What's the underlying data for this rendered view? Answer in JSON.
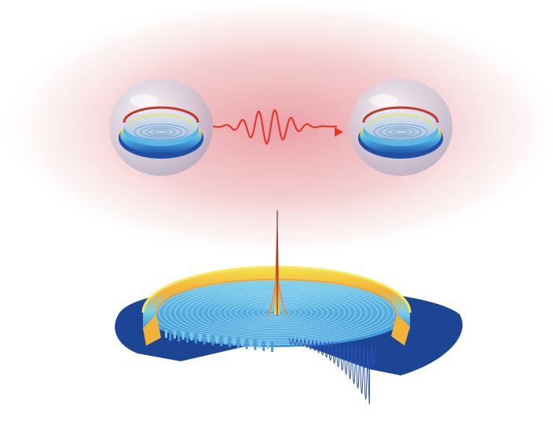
{
  "colors": {
    "cloud": "#e9a4a8",
    "wave": "#e8342a",
    "ring_blue": "#1f4ea3",
    "ring_cyan": "#4fb8e8",
    "ring_yellow": "#f2e24a",
    "ring_red": "#d8452e",
    "sheet_blue": "#1c4596"
  },
  "elements": {
    "left_resonator": "microdisk-resonator",
    "right_resonator": "microdisk-resonator",
    "photon": "oscillating-wave-packet-arrow",
    "field_plot": "3d-cutaway-mode-field-distribution"
  }
}
